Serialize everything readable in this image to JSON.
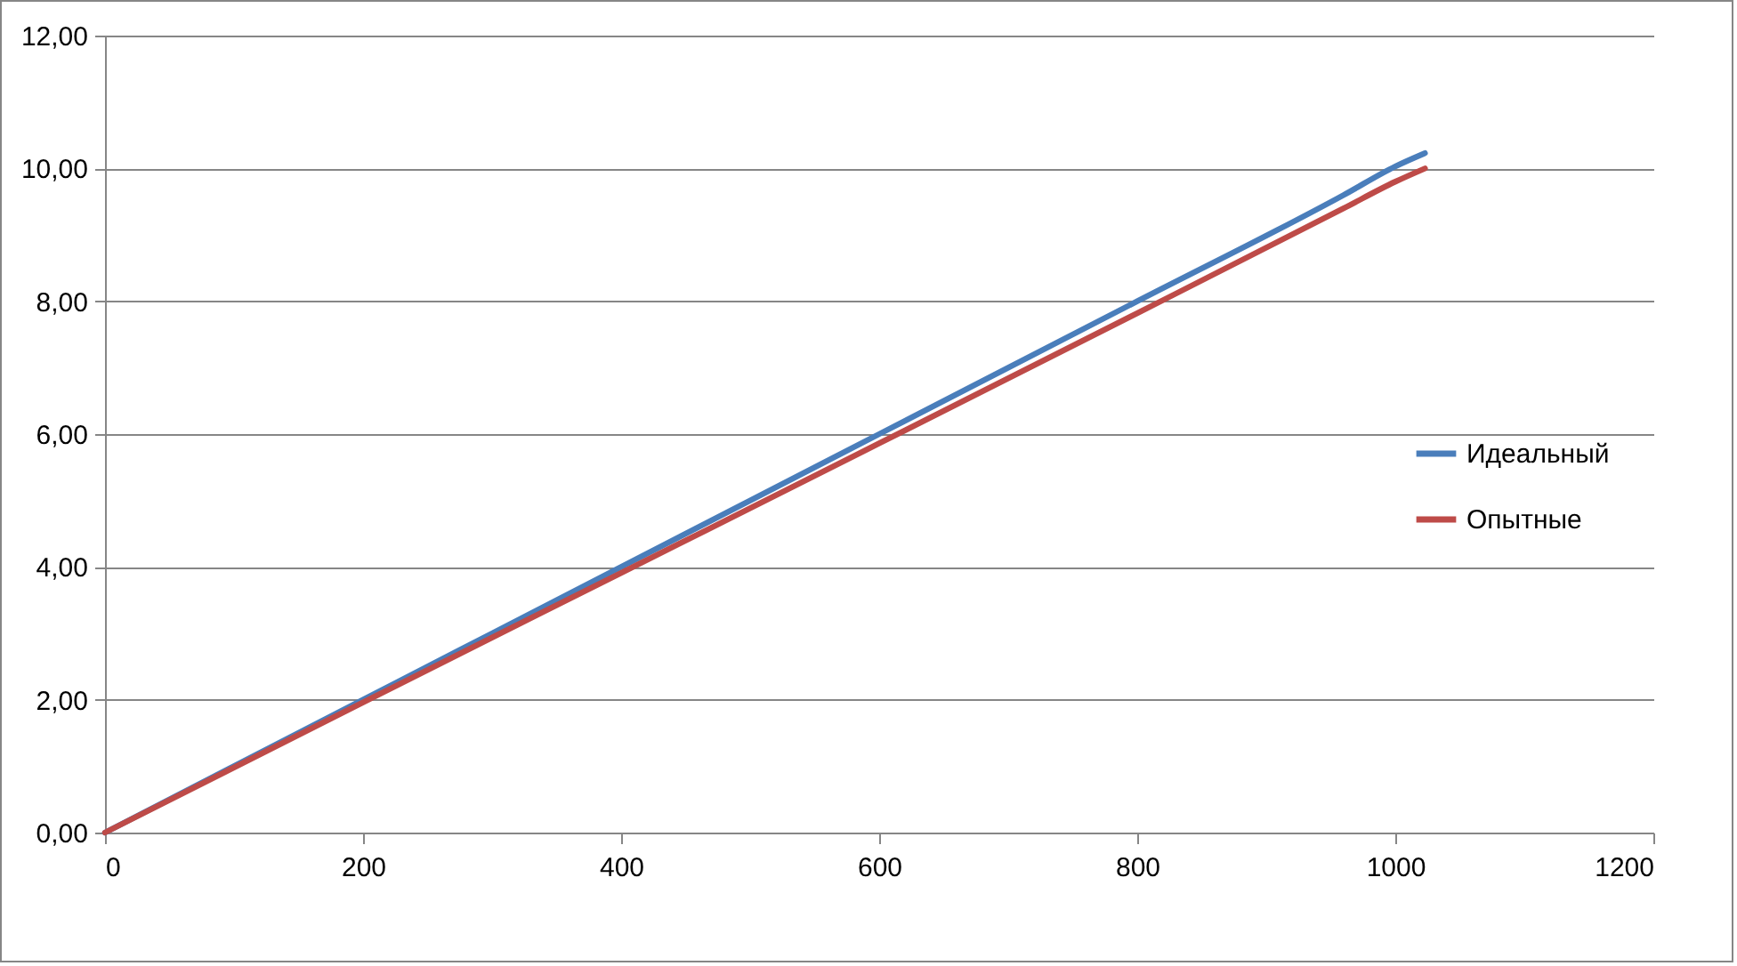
{
  "chart_data": {
    "type": "line",
    "xlim": [
      0,
      1200
    ],
    "xticks": [
      0,
      200,
      400,
      600,
      800,
      1000,
      1200
    ],
    "ylim": [
      0,
      12
    ],
    "yticks": [
      {
        "value": 0,
        "label": "0,00"
      },
      {
        "value": 2,
        "label": "2,00"
      },
      {
        "value": 4,
        "label": "4,00"
      },
      {
        "value": 6,
        "label": "6,00"
      },
      {
        "value": 8,
        "label": "8,00"
      },
      {
        "value": 10,
        "label": "10,00"
      },
      {
        "value": 12,
        "label": "12,00"
      }
    ],
    "grid": "y",
    "legend": "right",
    "line_style": "solid",
    "marker": "none",
    "x": [
      0,
      200,
      400,
      600,
      800,
      960,
      1000,
      1023
    ],
    "series": [
      {
        "name": "Идеальный",
        "color": "#4a7ebb",
        "values": [
          0,
          2,
          4,
          6,
          8,
          9.6,
          10.03,
          10.23
        ]
      },
      {
        "name": "Опытные",
        "color": "#be4b48",
        "values": [
          0,
          1.96,
          3.91,
          5.86,
          7.82,
          9.4,
          9.8,
          10.0
        ]
      }
    ]
  }
}
